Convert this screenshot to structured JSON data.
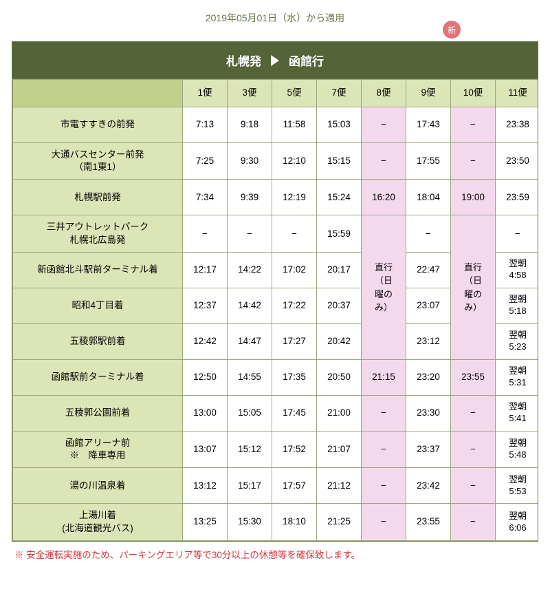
{
  "colors": {
    "header_bg": "#556338",
    "header_text": "#ffffff",
    "col_header_bg": "#dce5b7",
    "corner_bg": "#c2d08b",
    "row_header_bg": "#dce5b7",
    "border": "#9aa77a",
    "pink_bg": "#f4d9ec",
    "badge_bg": "#e17378",
    "notice_text": "#657347",
    "footnote_text": "#d03a3f",
    "page_bg": "#ffffff"
  },
  "notice_text": "2019年05月01日（水）から適用",
  "badge_label": "新",
  "route": {
    "from": "札幌発",
    "to": "函館行"
  },
  "services": [
    "1便",
    "3便",
    "5便",
    "7便",
    "8便",
    "9便",
    "10便",
    "11便"
  ],
  "merged_label": "直行\n（日\n曜の\nみ）",
  "dash": "−",
  "stops": [
    {
      "label": "市電すすきの前発",
      "times": [
        "7:13",
        "9:18",
        "11:58",
        "15:03",
        "PINK_DASH",
        "17:43",
        "PINK_DASH",
        "23:38"
      ]
    },
    {
      "label": "大通バスセンター前発\n（南1東1）",
      "times": [
        "7:25",
        "9:30",
        "12:10",
        "15:15",
        "PINK_DASH",
        "17:55",
        "PINK_DASH",
        "23:50"
      ]
    },
    {
      "label": "札幌駅前発",
      "times": [
        "7:34",
        "9:39",
        "12:19",
        "15:24",
        {
          "v": "16:20",
          "pink": true
        },
        "18:04",
        {
          "v": "19:00",
          "pink": true
        },
        "23:59"
      ]
    },
    {
      "label": "三井アウトレットパーク\n札幌北広島発",
      "times": [
        "−",
        "−",
        "−",
        "15:59",
        "MERGE_START",
        "−",
        "MERGE_START",
        "−"
      ]
    },
    {
      "label": "新函館北斗駅前ターミナル着",
      "times": [
        "12:17",
        "14:22",
        "17:02",
        "20:17",
        "MERGED",
        "22:47",
        "MERGED",
        {
          "v": "翌朝\n4:58",
          "two": true
        }
      ]
    },
    {
      "label": "昭和4丁目着",
      "times": [
        "12:37",
        "14:42",
        "17:22",
        "20:37",
        "MERGED",
        "23:07",
        "MERGED",
        {
          "v": "翌朝\n5:18",
          "two": true
        }
      ]
    },
    {
      "label": "五稜郭駅前着",
      "times": [
        "12:42",
        "14:47",
        "17:27",
        "20:42",
        "MERGED_END",
        "23:12",
        "MERGED_END",
        {
          "v": "翌朝\n5:23",
          "two": true
        }
      ]
    },
    {
      "label": "函館駅前ターミナル着",
      "times": [
        "12:50",
        "14:55",
        "17:35",
        "20:50",
        {
          "v": "21:15",
          "pink": true
        },
        "23:20",
        {
          "v": "23:55",
          "pink": true
        },
        {
          "v": "翌朝\n5:31",
          "two": true
        }
      ]
    },
    {
      "label": "五稜郭公園前着",
      "times": [
        "13:00",
        "15:05",
        "17:45",
        "21:00",
        "PINK_DASH",
        "23:30",
        "PINK_DASH",
        {
          "v": "翌朝\n5:41",
          "two": true
        }
      ]
    },
    {
      "label": "函館アリーナ前\n※　降車専用",
      "times": [
        "13:07",
        "15:12",
        "17:52",
        "21:07",
        "PINK_DASH",
        "23:37",
        "PINK_DASH",
        {
          "v": "翌朝\n5:48",
          "two": true
        }
      ]
    },
    {
      "label": "湯の川温泉着",
      "times": [
        "13:12",
        "15:17",
        "17:57",
        "21:12",
        "PINK_DASH",
        "23:42",
        "PINK_DASH",
        {
          "v": "翌朝\n5:53",
          "two": true
        }
      ]
    },
    {
      "label": "上湯川着\n(北海道観光バス)",
      "times": [
        "13:25",
        "15:30",
        "18:10",
        "21:25",
        "PINK_DASH",
        "23:55",
        "PINK_DASH",
        {
          "v": "翌朝\n6:06",
          "two": true
        }
      ]
    }
  ],
  "footnote": "※ 安全運転実施のため、パーキングエリア等で30分以上の休憩等を確保致します。"
}
